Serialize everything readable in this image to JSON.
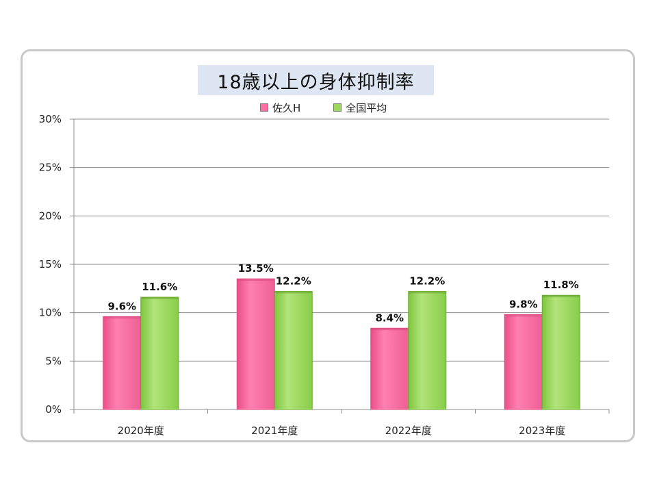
{
  "chart_data": {
    "type": "bar",
    "title": "18歳以上の身体抑制率",
    "categories": [
      "2020年度",
      "2021年度",
      "2022年度",
      "2023年度"
    ],
    "series": [
      {
        "name": "佐久H",
        "values": [
          9.6,
          13.5,
          8.4,
          9.8
        ],
        "labels": [
          "9.6%",
          "13.5%",
          "8.4%",
          "9.8%"
        ],
        "color": "#ff6fa3"
      },
      {
        "name": "全国平均",
        "values": [
          11.6,
          12.2,
          12.2,
          11.8
        ],
        "labels": [
          "11.6%",
          "12.2%",
          "12.2%",
          "11.8%"
        ],
        "color": "#9cd85a"
      }
    ],
    "ylim": [
      0,
      30
    ],
    "yticks": [
      0,
      5,
      10,
      15,
      20,
      25,
      30
    ],
    "ytick_labels": [
      "0%",
      "5%",
      "10%",
      "15%",
      "20%",
      "25%",
      "30%"
    ],
    "grid": true,
    "legend_position": "top-center",
    "xlabel": "",
    "ylabel": ""
  },
  "colors": {
    "series_1_dark": "#d94a80",
    "series_2_dark": "#6aa832",
    "grid": "#8c8c8c",
    "title_bg": "#dde6f2"
  }
}
